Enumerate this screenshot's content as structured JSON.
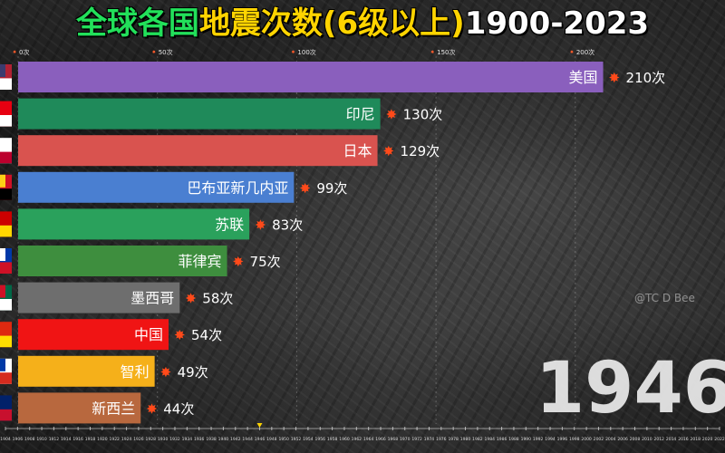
{
  "title": {
    "part1": "全球各国",
    "part2": "地震次数(6级以上)",
    "part3": "1900-2023"
  },
  "year": "1946",
  "watermark": "@TC   D Bee",
  "timeline": [
    "1904",
    "1906",
    "1908",
    "1910",
    "1912",
    "1914",
    "1916",
    "1918",
    "1920",
    "1922",
    "1924",
    "1926",
    "1928",
    "1930",
    "1932",
    "1934",
    "1936",
    "1938",
    "1940",
    "1942",
    "1944",
    "1946",
    "1948",
    "1950",
    "1952",
    "1954",
    "1956",
    "1958",
    "1960",
    "1962",
    "1964",
    "1966",
    "1968",
    "1970",
    "1972",
    "1974",
    "1976",
    "1978",
    "1980",
    "1982",
    "1984",
    "1986",
    "1988",
    "1990",
    "1992",
    "1994",
    "1996",
    "1998",
    "2000",
    "2002",
    "2004",
    "2006",
    "2008",
    "2010",
    "2012",
    "2014",
    "2016",
    "2018",
    "2020",
    "2022"
  ],
  "chart_data": {
    "type": "bar",
    "orientation": "horizontal",
    "xlim": [
      0,
      216
    ],
    "x_ticks": [
      0,
      50,
      100,
      150,
      200
    ],
    "x_tick_labels": [
      "0次",
      "50次",
      "100次",
      "150次",
      "200次"
    ],
    "value_suffix": "次",
    "bars": [
      {
        "category": "美国",
        "value": 210,
        "color": "#8a5fbd",
        "flag": [
          "#b22234",
          "#ffffff",
          "#3c3b6e"
        ]
      },
      {
        "category": "印尼",
        "value": 130,
        "color": "#1f8a5a",
        "flag": [
          "#e70011",
          "#ffffff"
        ]
      },
      {
        "category": "日本",
        "value": 129,
        "color": "#d9534f",
        "flag": [
          "#ffffff",
          "#bc002d"
        ]
      },
      {
        "category": "巴布亚新几内亚",
        "value": 99,
        "color": "#4a7fd1",
        "flag": [
          "#ce1126",
          "#000000",
          "#fcd116"
        ]
      },
      {
        "category": "苏联",
        "value": 83,
        "color": "#2aa15c",
        "flag": [
          "#cc0000",
          "#ffd700"
        ]
      },
      {
        "category": "菲律宾",
        "value": 75,
        "color": "#3e8e3e",
        "flag": [
          "#0038a8",
          "#ce1126",
          "#ffffff"
        ]
      },
      {
        "category": "墨西哥",
        "value": 58,
        "color": "#6e6e6e",
        "flag": [
          "#006847",
          "#ffffff",
          "#ce1126"
        ]
      },
      {
        "category": "中国",
        "value": 54,
        "color": "#f01414",
        "flag": [
          "#de2910",
          "#ffde00"
        ]
      },
      {
        "category": "智利",
        "value": 49,
        "color": "#f5b01a",
        "flag": [
          "#ffffff",
          "#d52b1e",
          "#0039a6"
        ]
      },
      {
        "category": "新西兰",
        "value": 44,
        "color": "#b8683e",
        "flag": [
          "#012169",
          "#c8102e"
        ]
      }
    ]
  }
}
